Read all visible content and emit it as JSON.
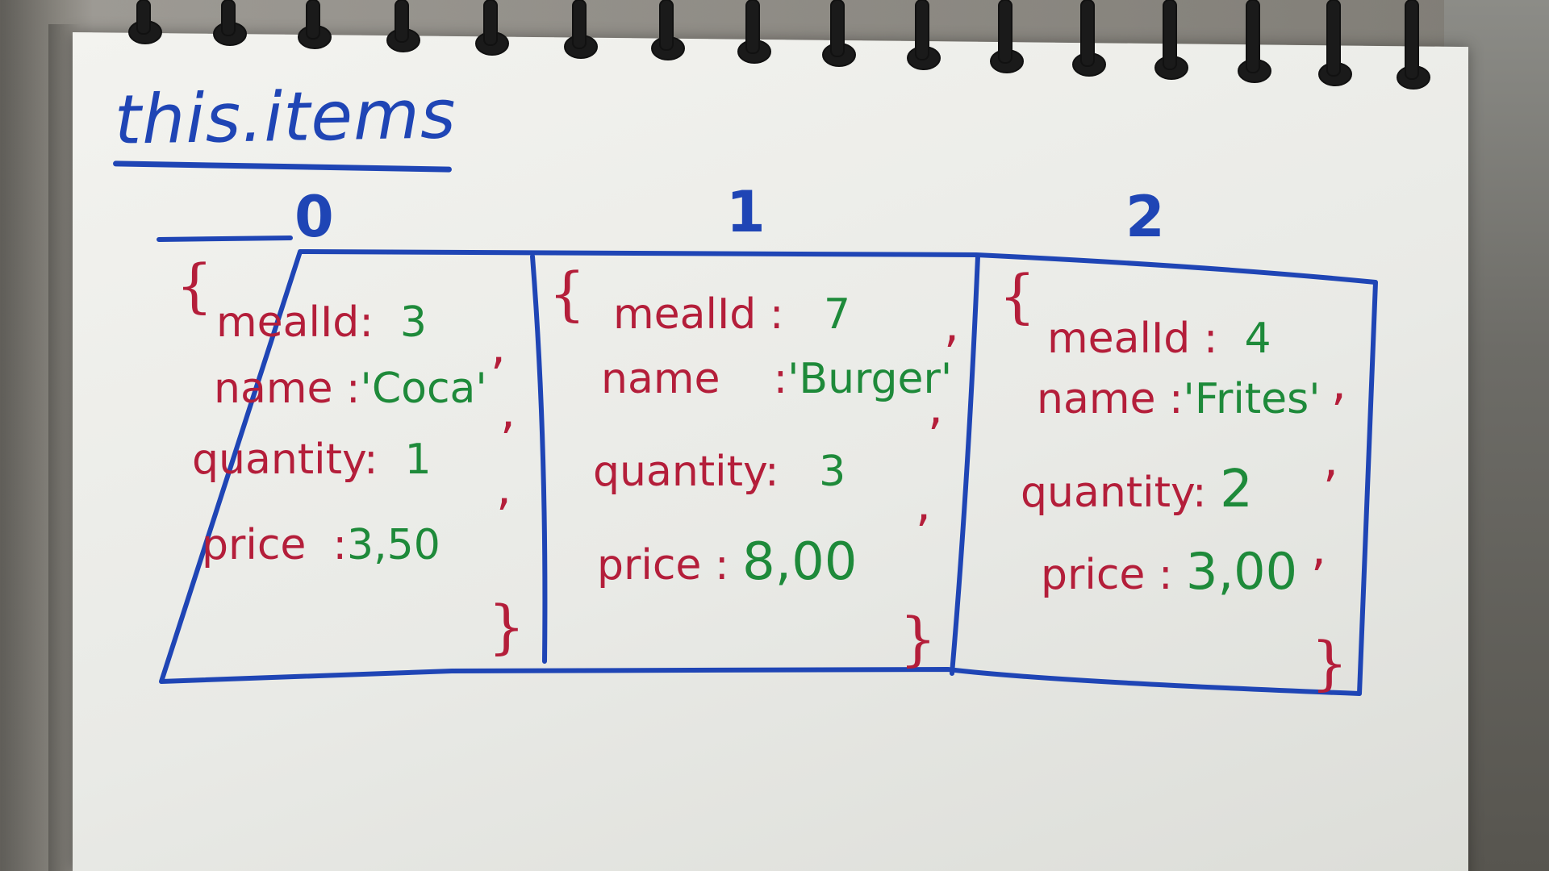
{
  "title": "this.items",
  "indices": [
    "0",
    "1",
    "2"
  ],
  "brace_open": "{",
  "brace_close": "}",
  "comma": ",",
  "colon": ":",
  "items": [
    {
      "mealId_key": "mealId",
      "mealId_val": "3",
      "name_key": "name",
      "name_val": "'Coca'",
      "quantity_key": "quantity",
      "quantity_val": "1",
      "price_key": "price",
      "price_val": "3,50"
    },
    {
      "mealId_key": "mealId",
      "mealId_val": "7",
      "name_key": "name",
      "name_val": "'Burger'",
      "quantity_key": "quantity",
      "quantity_val": "3",
      "price_key": "price",
      "price_val": "8,00"
    },
    {
      "mealId_key": "mealId",
      "mealId_val": "4",
      "name_key": "name",
      "name_val": "'Frites'",
      "quantity_key": "quantity",
      "quantity_val": "2",
      "price_key": "price",
      "price_val": "3,00"
    }
  ],
  "colors": {
    "blue_ink": "#1f45b5",
    "red_ink": "#b41e3a",
    "green_ink": "#1e8a3a"
  }
}
